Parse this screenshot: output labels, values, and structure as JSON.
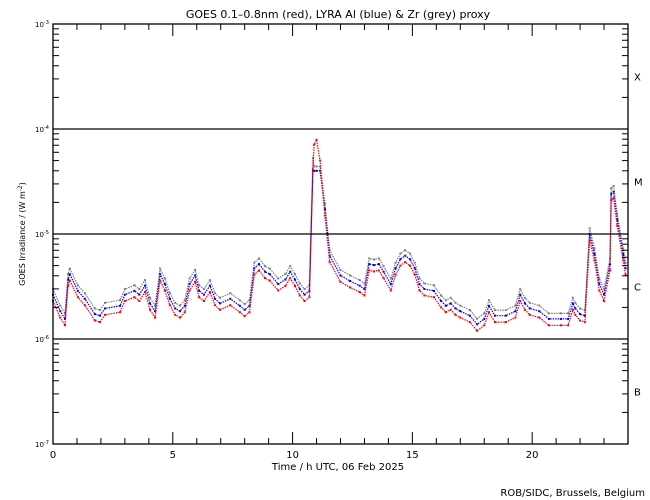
{
  "chart_data": {
    "type": "scatter",
    "title": "GOES 0.1–0.8nm (red), LYRA Al (blue) & Zr (grey) proxy",
    "xlabel": "Time / h UTC, 06 Feb 2025",
    "ylabel": "GOES Irradiance / (W m",
    "ylabel_exp": "-2",
    "ylabel_close": ")",
    "xlim": [
      0,
      24
    ],
    "ylim": [
      1e-07,
      0.001
    ],
    "yscale": "log",
    "x_ticks": [
      {
        "v": 0,
        "label": "0"
      },
      {
        "v": 5,
        "label": "5"
      },
      {
        "v": 10,
        "label": "10"
      },
      {
        "v": 15,
        "label": "15"
      },
      {
        "v": 20,
        "label": "20"
      }
    ],
    "y_ticks": [
      {
        "v": 0.001,
        "base": "10",
        "exp": "-3"
      },
      {
        "v": 0.0001,
        "base": "10",
        "exp": "-4"
      },
      {
        "v": 1e-05,
        "base": "10",
        "exp": "-5"
      },
      {
        "v": 1e-06,
        "base": "10",
        "exp": "-6"
      },
      {
        "v": 1e-07,
        "base": "10",
        "exp": "-7"
      }
    ],
    "class_lines": [
      0.0001,
      1e-05,
      1e-06
    ],
    "flare_classes": [
      {
        "label": "X",
        "v": 0.000316
      },
      {
        "label": "M",
        "v": 3.16e-05
      },
      {
        "label": "C",
        "v": 3.16e-06
      },
      {
        "label": "B",
        "v": 3.16e-07
      }
    ],
    "x": [
      0,
      0.3,
      0.5,
      0.63,
      0.7,
      1.04,
      1.33,
      1.75,
      1.96,
      2.17,
      2.8,
      3.0,
      3.4,
      3.6,
      3.84,
      4.05,
      4.26,
      4.47,
      4.67,
      4.88,
      5.1,
      5.3,
      5.5,
      5.7,
      5.93,
      6.1,
      6.3,
      6.55,
      6.76,
      6.97,
      7.4,
      7.8,
      8.0,
      8.2,
      8.4,
      8.6,
      8.85,
      9.05,
      9.4,
      9.7,
      9.9,
      10.1,
      10.3,
      10.5,
      10.7,
      10.85,
      10.9,
      11.0,
      11.15,
      11.35,
      11.55,
      12.0,
      12.4,
      12.8,
      13.0,
      13.2,
      13.4,
      13.6,
      13.8,
      14.1,
      14.3,
      14.5,
      14.7,
      14.9,
      15.1,
      15.3,
      15.5,
      15.9,
      16.2,
      16.4,
      16.6,
      16.8,
      17.0,
      17.4,
      17.7,
      18.0,
      18.2,
      18.45,
      18.9,
      19.3,
      19.5,
      19.7,
      19.9,
      20.3,
      20.7,
      21.2,
      21.5,
      21.7,
      21.8,
      22.0,
      22.2,
      22.4,
      22.6,
      22.8,
      23.0,
      23.25,
      23.3,
      23.4,
      23.55,
      23.8,
      23.9
    ],
    "series": [
      {
        "name": "GOES 0.1-0.8nm",
        "color": "#ff0000",
        "values": [
          2.3e-06,
          1.6e-06,
          1.35e-06,
          3.2e-06,
          3.6e-06,
          2.5e-06,
          2.1e-06,
          1.5e-06,
          1.45e-06,
          1.7e-06,
          1.8e-06,
          2.3e-06,
          2.5e-06,
          2.3e-06,
          2.8e-06,
          1.9e-06,
          1.6e-06,
          3.6e-06,
          2.9e-06,
          2.1e-06,
          1.7e-06,
          1.6e-06,
          1.8e-06,
          2.9e-06,
          3.5e-06,
          2.5e-06,
          2.3e-06,
          2.8e-06,
          2.1e-06,
          1.9e-06,
          2.1e-06,
          1.8e-06,
          1.65e-06,
          1.8e-06,
          4.1e-06,
          4.5e-06,
          3.8e-06,
          3.6e-06,
          2.9e-06,
          3.2e-06,
          3.8e-06,
          3.2e-06,
          2.6e-06,
          2.3e-06,
          2.5e-06,
          4.1e-05,
          7.1e-05,
          7.9e-05,
          5e-05,
          1.5e-05,
          5.4e-06,
          3.5e-06,
          3.1e-06,
          2.8e-06,
          2.6e-06,
          4.5e-06,
          4.4e-06,
          4.5e-06,
          3.8e-06,
          2.9e-06,
          4.1e-06,
          5e-06,
          5.4e-06,
          5e-06,
          4.1e-06,
          2.9e-06,
          2.6e-06,
          2.5e-06,
          2e-06,
          1.8e-06,
          1.9e-06,
          1.7e-06,
          1.6e-06,
          1.45e-06,
          1.2e-06,
          1.35e-06,
          1.8e-06,
          1.45e-06,
          1.45e-06,
          1.6e-06,
          2.3e-06,
          1.9e-06,
          1.7e-06,
          1.6e-06,
          1.35e-06,
          1.35e-06,
          1.35e-06,
          1.9e-06,
          1.7e-06,
          1.5e-06,
          1.45e-06,
          8.7e-06,
          5.6e-06,
          2.9e-06,
          2.3e-06,
          4.5e-06,
          2.1e-05,
          2.2e-05,
          1.2e-05,
          5.6e-06,
          4.1e-06
        ]
      },
      {
        "name": "LYRA Al proxy",
        "color": "#0000ff",
        "ratio_to_goes": 1.15,
        "cap": 4e-05
      },
      {
        "name": "LYRA Zr proxy",
        "color": "#808080",
        "ratio_to_goes": 1.3,
        "cap": 4.4e-05
      }
    ],
    "grid": false,
    "credit": "ROB/SIDC, Brussels, Belgium"
  }
}
